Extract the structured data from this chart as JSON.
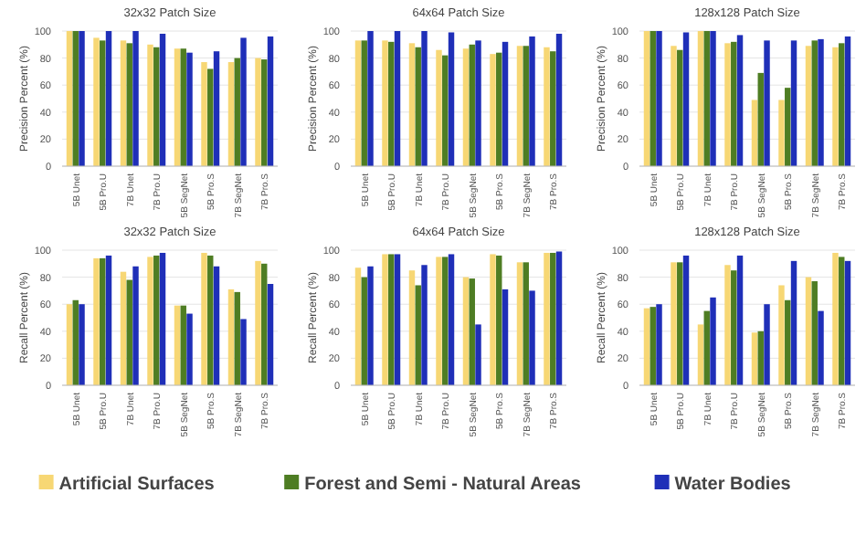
{
  "chart_data": [
    {
      "type": "bar",
      "title": "32x32 Patch Size",
      "ylabel": "Precision Percent (%)",
      "categories": [
        "5B Unet",
        "5B Pro.U",
        "7B Unet",
        "7B Pro.U",
        "5B SegNet",
        "5B Pro.S",
        "7B SegNet",
        "7B Pro.S"
      ],
      "ylim": [
        0,
        100
      ],
      "yticks": [
        0,
        20,
        40,
        60,
        80,
        100
      ],
      "grid": "y",
      "series": [
        {
          "color": "#f7d774",
          "values": [
            100,
            95,
            93,
            90,
            87,
            77,
            77,
            80
          ]
        },
        {
          "color": "#4e7d23",
          "values": [
            100,
            93,
            91,
            88,
            87,
            72,
            80,
            79
          ]
        },
        {
          "color": "#1f2fb8",
          "values": [
            100,
            100,
            100,
            98,
            84,
            85,
            95,
            96
          ]
        }
      ]
    },
    {
      "type": "bar",
      "title": "64x64 Patch Size",
      "ylabel": "Precision Percent (%)",
      "categories": [
        "5B Unet",
        "5B Pro.U",
        "7B Unet",
        "7B Pro.U",
        "5B SegNet",
        "5B Pro.S",
        "7B SegNet",
        "7B Pro.S"
      ],
      "ylim": [
        0,
        100
      ],
      "yticks": [
        0,
        20,
        40,
        60,
        80,
        100
      ],
      "grid": "y",
      "series": [
        {
          "color": "#f7d774",
          "values": [
            93,
            93,
            91,
            86,
            87,
            83,
            89,
            88
          ]
        },
        {
          "color": "#4e7d23",
          "values": [
            93,
            92,
            88,
            82,
            90,
            84,
            89,
            85
          ]
        },
        {
          "color": "#1f2fb8",
          "values": [
            100,
            100,
            100,
            99,
            93,
            92,
            96,
            98
          ]
        }
      ]
    },
    {
      "type": "bar",
      "title": "128x128 Patch Size",
      "ylabel": "Precision Percent (%)",
      "categories": [
        "5B Unet",
        "5B Pro.U",
        "7B Unet",
        "7B Pro.U",
        "5B SegNet",
        "5B Pro.S",
        "7B SegNet",
        "7B Pro.S"
      ],
      "ylim": [
        0,
        100
      ],
      "yticks": [
        0,
        20,
        40,
        60,
        80,
        100
      ],
      "grid": "y",
      "series": [
        {
          "color": "#f7d774",
          "values": [
            100,
            89,
            100,
            91,
            49,
            49,
            89,
            88
          ]
        },
        {
          "color": "#4e7d23",
          "values": [
            100,
            86,
            100,
            92,
            69,
            58,
            93,
            91
          ]
        },
        {
          "color": "#1f2fb8",
          "values": [
            100,
            99,
            100,
            97,
            93,
            93,
            94,
            96
          ]
        }
      ]
    },
    {
      "type": "bar",
      "title": "32x32 Patch Size",
      "ylabel": "Recall Percent (%)",
      "categories": [
        "5B Unet",
        "5B Pro.U",
        "7B Unet",
        "7B Pro.U",
        "5B SegNet",
        "5B Pro.S",
        "7B SegNet",
        "7B Pro.S"
      ],
      "ylim": [
        0,
        100
      ],
      "yticks": [
        0,
        20,
        40,
        60,
        80,
        100
      ],
      "grid": "y",
      "series": [
        {
          "color": "#f7d774",
          "values": [
            60,
            94,
            84,
            95,
            59,
            98,
            71,
            92
          ]
        },
        {
          "color": "#4e7d23",
          "values": [
            63,
            94,
            78,
            96,
            59,
            96,
            69,
            90
          ]
        },
        {
          "color": "#1f2fb8",
          "values": [
            60,
            96,
            88,
            98,
            53,
            88,
            49,
            75
          ]
        }
      ]
    },
    {
      "type": "bar",
      "title": "64x64 Patch Size",
      "ylabel": "Recall Percent (%)",
      "categories": [
        "5B Unet",
        "5B Pro.U",
        "7B Unet",
        "7B Pro.U",
        "5B SegNet",
        "5B Pro.S",
        "7B SegNet",
        "7B Pro.S"
      ],
      "ylim": [
        0,
        100
      ],
      "yticks": [
        0,
        20,
        40,
        60,
        80,
        100
      ],
      "grid": "y",
      "series": [
        {
          "color": "#f7d774",
          "values": [
            87,
            97,
            85,
            95,
            80,
            97,
            91,
            98
          ]
        },
        {
          "color": "#4e7d23",
          "values": [
            80,
            97,
            74,
            95,
            79,
            96,
            91,
            98
          ]
        },
        {
          "color": "#1f2fb8",
          "values": [
            88,
            97,
            89,
            97,
            45,
            71,
            70,
            99
          ]
        }
      ]
    },
    {
      "type": "bar",
      "title": "128x128 Patch Size",
      "ylabel": "Recall Percent (%)",
      "categories": [
        "5B Unet",
        "5B Pro.U",
        "7B Unet",
        "7B Pro.U",
        "5B SegNet",
        "5B Pro.S",
        "7B SegNet",
        "7B Pro.S"
      ],
      "ylim": [
        0,
        100
      ],
      "yticks": [
        0,
        20,
        40,
        60,
        80,
        100
      ],
      "grid": "y",
      "legend": "bottom",
      "series": [
        {
          "name": "Artificial Surfaces",
          "color": "#f7d774",
          "values": [
            57,
            91,
            45,
            89,
            39,
            74,
            80,
            98
          ]
        },
        {
          "name": "Forest and Semi - Natural Areas",
          "color": "#4e7d23",
          "values": [
            58,
            91,
            55,
            85,
            40,
            63,
            77,
            95
          ]
        },
        {
          "name": "Water Bodies",
          "color": "#1f2fb8",
          "values": [
            60,
            96,
            65,
            96,
            60,
            92,
            55,
            92
          ]
        }
      ]
    }
  ]
}
